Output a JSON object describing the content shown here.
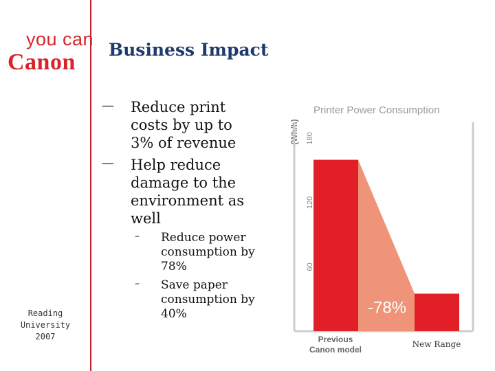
{
  "logo": {
    "tagline": "you can",
    "brand": "Canon"
  },
  "slide": {
    "title": "Business Impact",
    "bullets": [
      "Reduce print costs by up to 3% of revenue",
      "Help reduce damage to the environment as well"
    ],
    "sub_bullets": [
      "Reduce power consumption by 78%",
      "Save paper consumption by 40%"
    ],
    "bullet_marker": "—",
    "sub_bullet_marker": "–",
    "footnote": "Reading University 2007"
  },
  "colors": {
    "brand_red": "#d8232a",
    "bar_red": "#e21f26",
    "slope_fill": "#ef9478",
    "title_blue": "#1e3a6d"
  },
  "chart_data": {
    "type": "bar",
    "title": "Printer Power Consumption",
    "ylabel": "(Wh/h)",
    "categories": [
      "Previous Canon model",
      "New Range"
    ],
    "values": [
      160,
      35
    ],
    "ylim": [
      0,
      195
    ],
    "yticks": [
      "60",
      "120",
      "180"
    ],
    "annotation": "-78%"
  }
}
